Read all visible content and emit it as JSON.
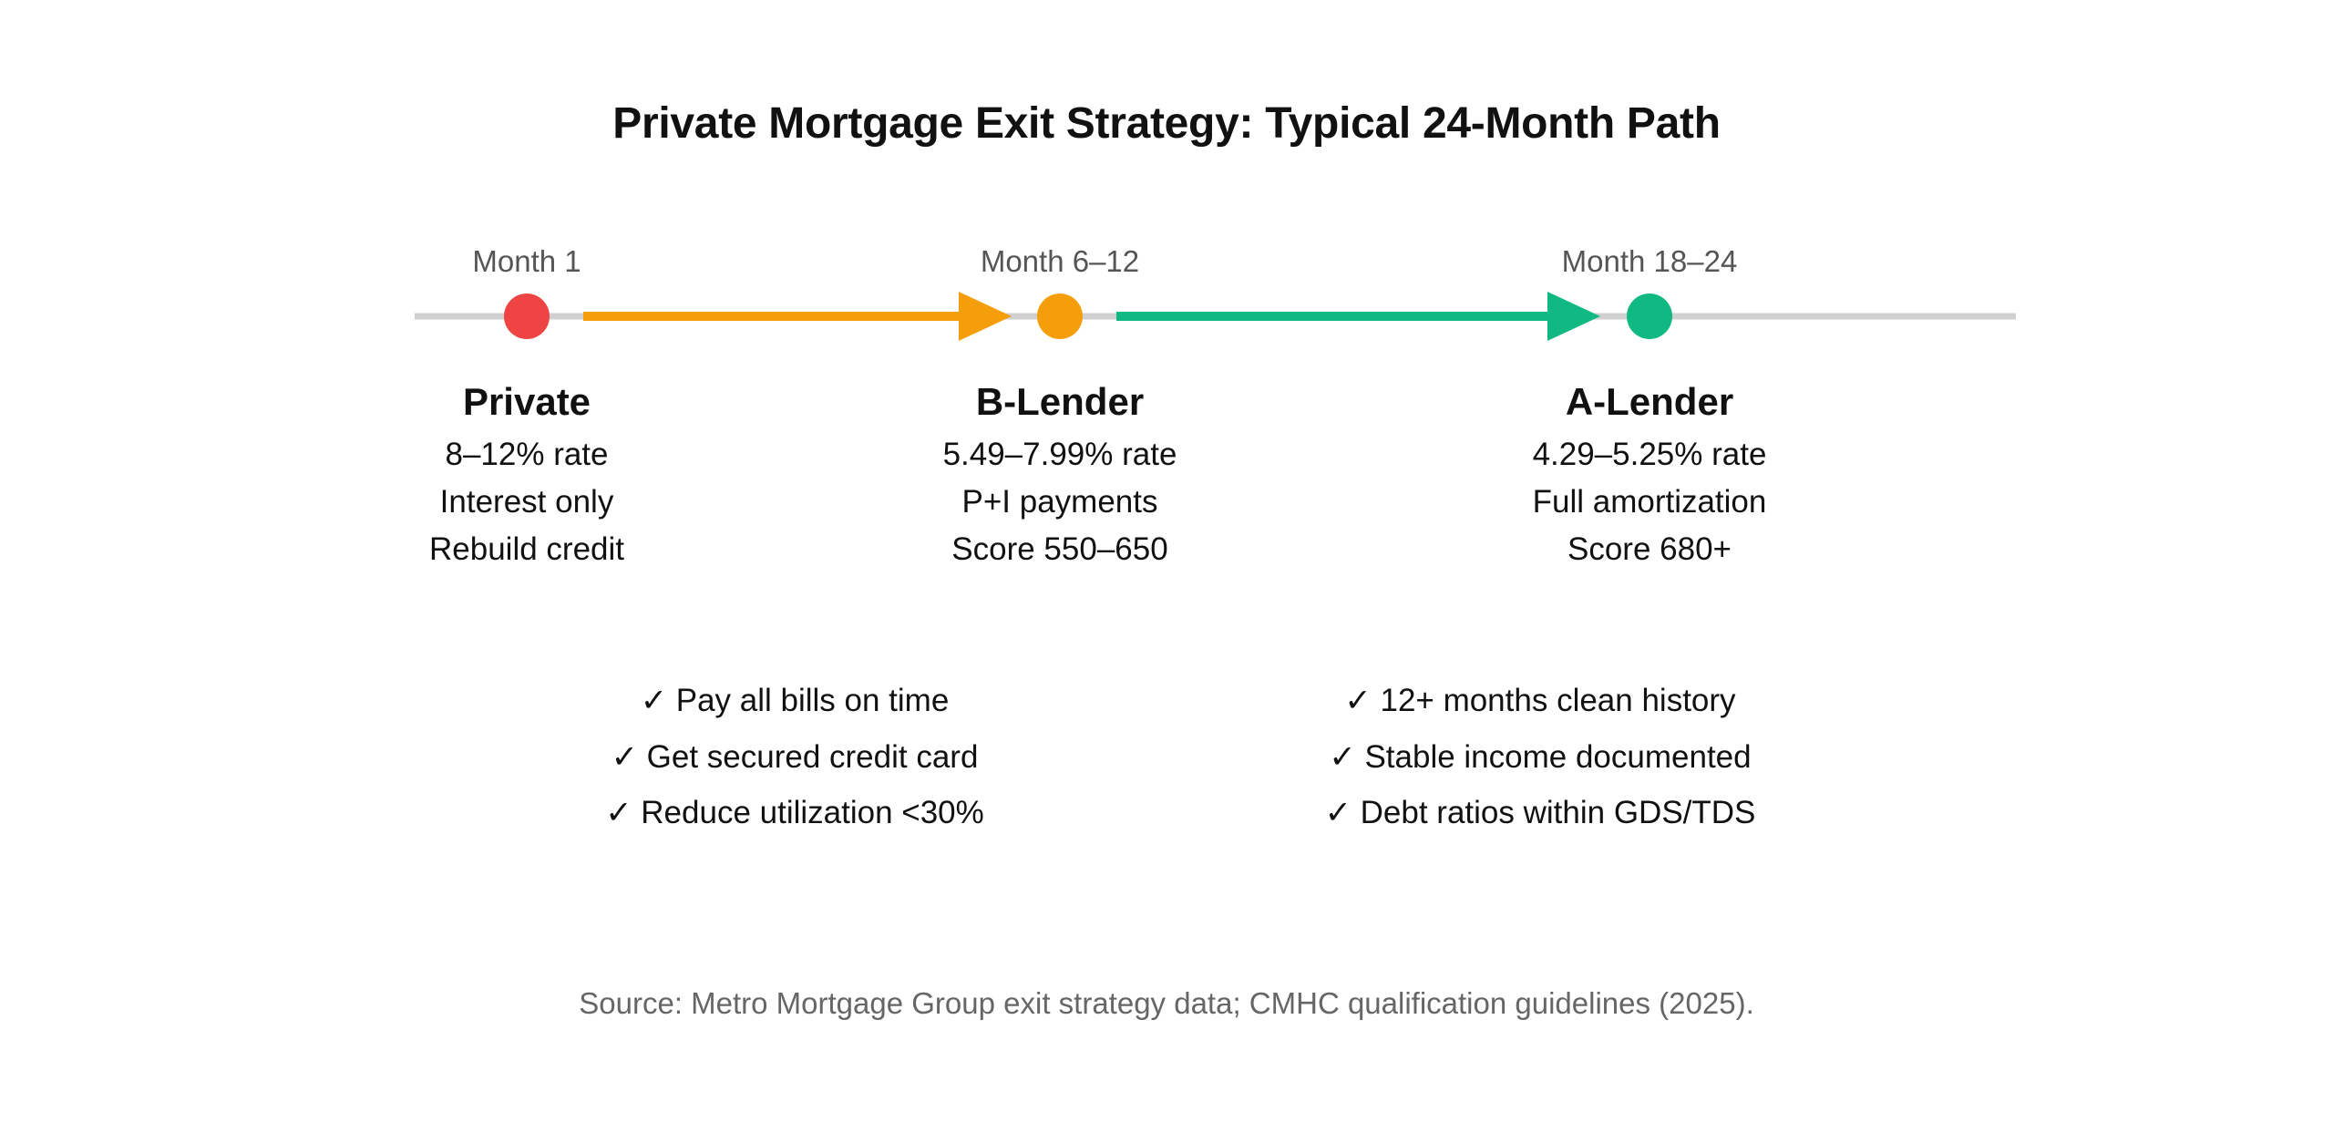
{
  "title": "Private Mortgage Exit Strategy: Typical 24-Month Path",
  "colors": {
    "track": "#d0d0d0",
    "private": "#ef4444",
    "b_lender": "#f59e0b",
    "a_lender": "#10b981"
  },
  "stages": [
    {
      "month": "Month 1",
      "name": "Private",
      "lines": [
        "8–12% rate",
        "Interest only",
        "Rebuild credit"
      ],
      "color": "#ef4444"
    },
    {
      "month": "Month 6–12",
      "name": "B-Lender",
      "lines": [
        "5.49–7.99% rate",
        "P+I payments",
        "Score 550–650"
      ],
      "color": "#f59e0b"
    },
    {
      "month": "Month 18–24",
      "name": "A-Lender",
      "lines": [
        "4.29–5.25% rate",
        "Full amortization",
        "Score 680+"
      ],
      "color": "#10b981"
    }
  ],
  "checklists": [
    {
      "items": [
        "✓ Pay all bills on time",
        "✓ Get secured credit card",
        "✓ Reduce utilization <30%"
      ]
    },
    {
      "items": [
        "✓ 12+ months clean history",
        "✓ Stable income documented",
        "✓ Debt ratios within GDS/TDS"
      ]
    }
  ],
  "source": "Source: Metro Mortgage Group exit strategy data; CMHC qualification guidelines (2025)."
}
